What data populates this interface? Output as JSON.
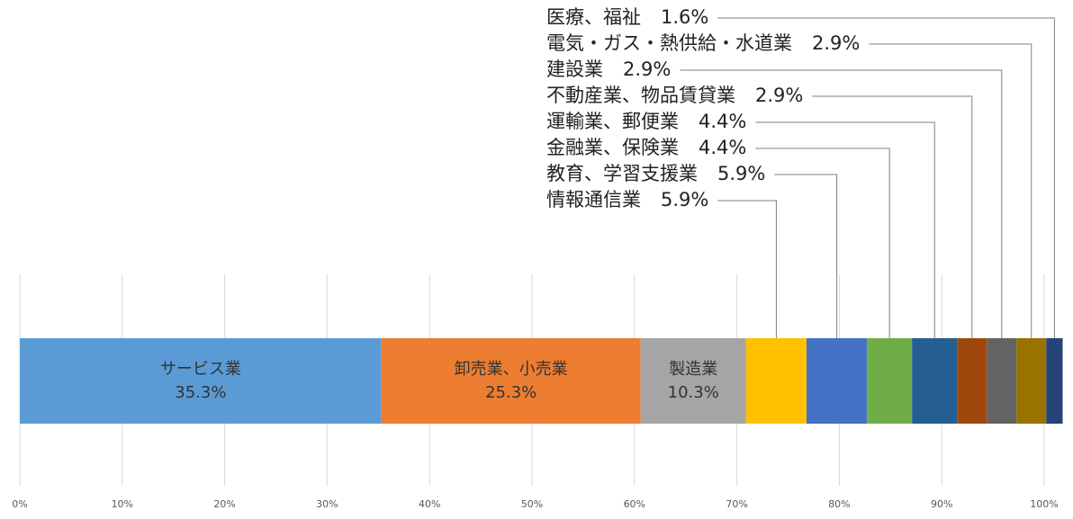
{
  "chart_data": {
    "type": "stacked-bar-100",
    "categories": [
      "サービス業",
      "卸売業、小売業",
      "製造業",
      "情報通信業",
      "教育、学習支援業",
      "金融業、保険業",
      "運輸業、郵便業",
      "不動産業、物品賃貸業",
      "建設業",
      "電気・ガス・熱供給・水道業",
      "医療、福祉"
    ],
    "values": [
      35.3,
      25.3,
      10.3,
      5.9,
      5.9,
      4.4,
      4.4,
      2.9,
      2.9,
      2.9,
      1.6
    ],
    "value_labels": [
      "35.3%",
      "25.3%",
      "10.3%",
      "5.9%",
      "5.9%",
      "4.4%",
      "4.4%",
      "2.9%",
      "2.9%",
      "2.9%",
      "1.6%"
    ],
    "colors": [
      "#5b9bd5",
      "#ed7d31",
      "#a5a5a5",
      "#ffc000",
      "#4472c4",
      "#70ad47",
      "#255e91",
      "#9e480e",
      "#636363",
      "#997300",
      "#264478"
    ],
    "xlim": [
      0,
      100
    ],
    "xticks": [
      {
        "value": 0,
        "label": "0%"
      },
      {
        "value": 10,
        "label": "10%"
      },
      {
        "value": 20,
        "label": "20%"
      },
      {
        "value": 30,
        "label": "30%"
      },
      {
        "value": 40,
        "label": "40%"
      },
      {
        "value": 50,
        "label": "50%"
      },
      {
        "value": 60,
        "label": "60%"
      },
      {
        "value": 70,
        "label": "70%"
      },
      {
        "value": 80,
        "label": "80%"
      },
      {
        "value": 90,
        "label": "90%"
      },
      {
        "value": 100,
        "label": "100%"
      }
    ],
    "grid": true
  }
}
